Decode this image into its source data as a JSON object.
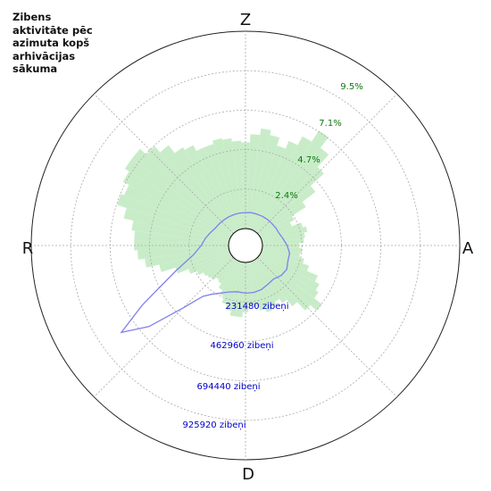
{
  "title_lines": [
    "Zibens",
    "aktivitāte pēc",
    "azimuta kopš",
    "arhivācijas",
    "sākuma"
  ],
  "compass": {
    "n": "Z",
    "e": "A",
    "s": "D",
    "w": "R"
  },
  "colors": {
    "percent_fill": "#c8ecc8",
    "percent_label": "#117711",
    "count_line": "#8080ee",
    "count_label": "#0000cc",
    "grid": "#aaaaaa",
    "outer_ring": "#222222"
  },
  "chart_data": {
    "type": "polar",
    "title": "Zibens aktivitāte pēc azimuta kopš arhivācijas sākuma",
    "direction_labels": [
      "Z",
      "A",
      "D",
      "R"
    ],
    "percent_scale": {
      "ring_values": [
        2.4,
        4.7,
        7.1,
        9.5
      ],
      "ring_labels": [
        "2.4%",
        "4.7%",
        "7.1%",
        "9.5%"
      ],
      "max": 11.9
    },
    "count_scale": {
      "ring_values": [
        231480,
        462960,
        694440,
        925920
      ],
      "ring_labels": [
        "231480 zibeņi",
        "462960 zibeņi",
        "694440 zibeņi",
        "925920 zibeņi"
      ],
      "max": 1157400
    },
    "series": [
      {
        "kind": "bars",
        "unit": "percent",
        "sector_width_deg": 5,
        "azimuth_deg": [
          0,
          5,
          10,
          15,
          20,
          25,
          30,
          35,
          40,
          45,
          50,
          55,
          60,
          65,
          70,
          75,
          80,
          85,
          90,
          95,
          100,
          105,
          110,
          115,
          120,
          125,
          130,
          135,
          140,
          145,
          150,
          155,
          160,
          165,
          170,
          175,
          180,
          185,
          190,
          195,
          200,
          205,
          210,
          215,
          220,
          225,
          230,
          235,
          240,
          245,
          250,
          255,
          260,
          265,
          270,
          275,
          280,
          285,
          290,
          295,
          300,
          305,
          310,
          315,
          320,
          325,
          330,
          335,
          340,
          345,
          350,
          355
        ],
        "values": [
          5.2,
          5.7,
          6.1,
          5.8,
          5.3,
          5.8,
          6.4,
          7.2,
          6.4,
          5.4,
          4.3,
          3.3,
          2.3,
          2.0,
          2.6,
          2.8,
          2.6,
          2.5,
          2.2,
          2.4,
          2.3,
          2.6,
          3.0,
          3.7,
          4.0,
          4.2,
          4.8,
          4.3,
          3.6,
          3.1,
          2.8,
          3.0,
          3.2,
          3.0,
          2.7,
          2.6,
          3.0,
          3.3,
          3.3,
          3.0,
          2.7,
          2.3,
          2.0,
          1.7,
          1.6,
          1.8,
          1.9,
          2.0,
          2.3,
          2.7,
          3.4,
          4.3,
          5.1,
          5.5,
          5.7,
          5.7,
          5.9,
          6.5,
          7.1,
          6.9,
          7.3,
          7.6,
          7.6,
          7.1,
          6.6,
          6.0,
          5.8,
          5.4,
          5.4,
          5.6,
          5.5,
          5.3
        ]
      },
      {
        "kind": "line",
        "unit": "count",
        "azimuth_deg": [
          0,
          10,
          20,
          30,
          40,
          50,
          60,
          70,
          80,
          90,
          100,
          110,
          120,
          130,
          140,
          150,
          160,
          170,
          180,
          190,
          200,
          210,
          215,
          220,
          225,
          230,
          235,
          240,
          250,
          260,
          270,
          280,
          290,
          300,
          310,
          320,
          330,
          340,
          350
        ],
        "values": [
          94000,
          96000,
          96000,
          98000,
          100000,
          102000,
          106000,
          110000,
          125000,
          145000,
          163000,
          165000,
          180000,
          174000,
          157000,
          163000,
          175000,
          180000,
          180000,
          176000,
          191000,
          225000,
          250000,
          290000,
          420000,
          640000,
          790000,
          600000,
          335000,
          210000,
          160000,
          140000,
          120000,
          105000,
          100000,
          97000,
          95000,
          94000,
          94000
        ]
      }
    ],
    "grid": true,
    "legend": "none"
  }
}
